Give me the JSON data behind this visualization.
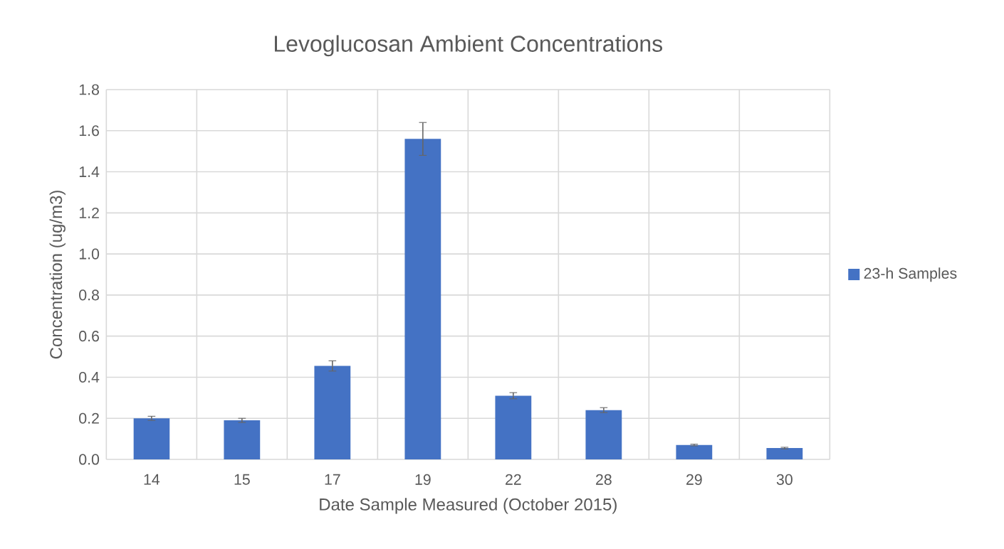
{
  "chart_data": {
    "type": "bar",
    "title": "Levoglucosan Ambient Concentrations",
    "xlabel": "Date Sample Measured (October 2015)",
    "ylabel": "Concentration (ug/m3)",
    "categories": [
      "14",
      "15",
      "17",
      "19",
      "22",
      "28",
      "29",
      "30"
    ],
    "series": [
      {
        "name": "23-h Samples",
        "color": "#4472c4",
        "values": [
          0.2,
          0.19,
          0.455,
          1.56,
          0.31,
          0.24,
          0.07,
          0.055
        ],
        "errors": [
          0.01,
          0.01,
          0.025,
          0.08,
          0.015,
          0.012,
          0.004,
          0.004
        ]
      }
    ],
    "ylim": [
      0,
      1.8
    ],
    "yticks": [
      {
        "value": 0,
        "label": "0.0"
      },
      {
        "value": 0.2,
        "label": "0.2"
      },
      {
        "value": 0.4,
        "label": "0.4"
      },
      {
        "value": 0.6,
        "label": "0.6"
      },
      {
        "value": 0.8,
        "label": "0.8"
      },
      {
        "value": 1,
        "label": "1.0"
      },
      {
        "value": 1.2,
        "label": "1.2"
      },
      {
        "value": 1.4,
        "label": "1.4"
      },
      {
        "value": 1.6,
        "label": "1.6"
      },
      {
        "value": 1.8,
        "label": "1.8"
      }
    ],
    "grid": true,
    "legend": "right"
  }
}
